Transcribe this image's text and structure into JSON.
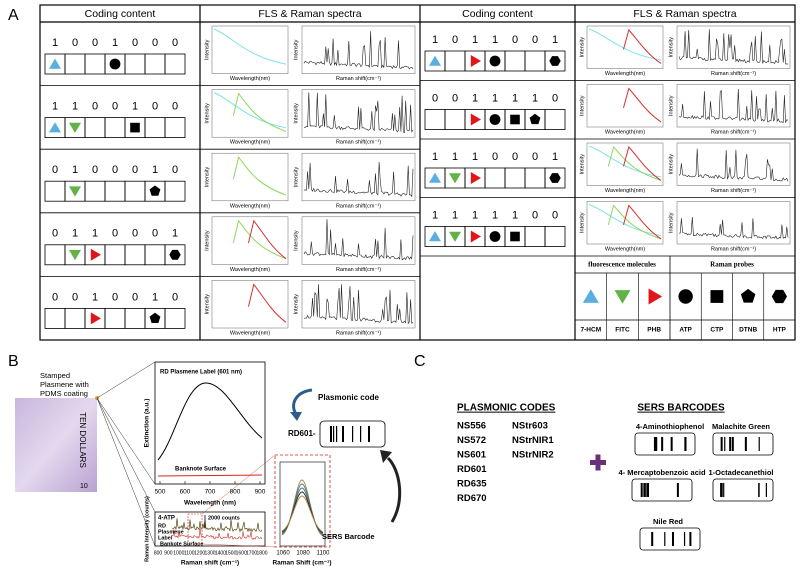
{
  "panel_a": {
    "label": "A",
    "headers": [
      "Coding content",
      "FLS & Raman spectra",
      "Coding content",
      "FLS & Raman spectra"
    ],
    "fls_axis": {
      "y": "Intensity",
      "x": "Wavelength(nm)"
    },
    "raman_axis": {
      "y": "Intensity",
      "x": "Raman shift(cm⁻¹)"
    },
    "left_rows": [
      [
        "1",
        "0",
        "0",
        "1",
        "0",
        "0",
        "0"
      ],
      [
        "1",
        "1",
        "0",
        "0",
        "1",
        "0",
        "0"
      ],
      [
        "0",
        "1",
        "0",
        "0",
        "0",
        "1",
        "0"
      ],
      [
        "0",
        "1",
        "1",
        "0",
        "0",
        "0",
        "1"
      ],
      [
        "0",
        "0",
        "1",
        "0",
        "0",
        "1",
        "0"
      ]
    ],
    "right_rows": [
      [
        "1",
        "0",
        "1",
        "1",
        "0",
        "0",
        "1"
      ],
      [
        "0",
        "0",
        "1",
        "1",
        "1",
        "1",
        "0"
      ],
      [
        "1",
        "1",
        "1",
        "0",
        "0",
        "0",
        "1"
      ],
      [
        "1",
        "1",
        "1",
        "1",
        "1",
        "0",
        "0"
      ]
    ],
    "legend": {
      "headers": [
        "fluorescence molecules",
        "Raman probes"
      ],
      "items": [
        "7-HCM",
        "FITC",
        "PHB",
        "ATP",
        "CTP",
        "DTNB",
        "HTP"
      ]
    }
  },
  "panel_b": {
    "label": "B",
    "note_caption": [
      "Stamped",
      "Plasmene with",
      "PDMS coating"
    ],
    "note_text": "TEN DOLLARS",
    "note_value": "10",
    "extinction": {
      "title": "RD Plasmene Label (601 nm)",
      "surface": "Banknote Surface",
      "ylabel": "Extinction (a.u.)",
      "xlabel": "Wavelength (nm)",
      "xticks": [
        "500",
        "600",
        "700",
        "800",
        "900"
      ]
    },
    "raman": {
      "probe": "4-ATP",
      "scale": "2000 counts",
      "label": [
        "RD",
        "Plasmene",
        "Label"
      ],
      "surface": "Bankote Surface",
      "ylabel": "Raman Intensity (counts)",
      "xlabel": "Raman shift (cm⁻¹)",
      "xticks": [
        "800",
        "900",
        "1000",
        "1100",
        "1200",
        "1300",
        "1400",
        "1500",
        "1600",
        "1700",
        "1800"
      ]
    },
    "zoom": {
      "xlabel": "Raman Shift (cm⁻¹)",
      "xticks": [
        "1060",
        "1080",
        "1100"
      ]
    },
    "plasmonic_code": "Plasmonic code",
    "code": "RD601-",
    "sers_barcode": "SERS Barcode"
  },
  "panel_c": {
    "label": "C",
    "plasmonic_title": "PLASMONIC CODES",
    "codes_col1": [
      "NS556",
      "NS572",
      "NS601",
      "RD601",
      "RD635",
      "RD670"
    ],
    "codes_col2": [
      "NStr603",
      "NStrNIR1",
      "NStrNIR2"
    ],
    "sers_title": "SERS BARCODES",
    "barcodes": [
      "4-Aminothiophenol",
      "Malachite Green",
      "4- Mercaptobenzoic acid",
      "1-Octadecanethiol",
      "Nile Red"
    ]
  }
}
